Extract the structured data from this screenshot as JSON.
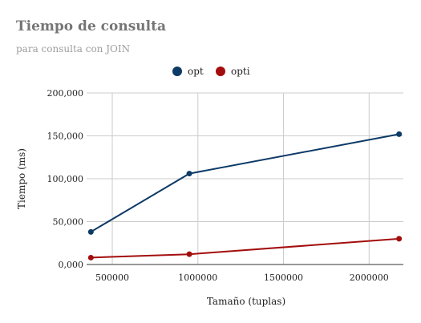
{
  "chart_data": {
    "type": "line",
    "title": "Tiempo de consulta",
    "subtitle": "para consulta con JOIN",
    "xlabel": "Tamaño (tuplas)",
    "ylabel": "Tiempo (ms)",
    "xlim": [
      350000,
      2200000
    ],
    "ylim": [
      0,
      200000
    ],
    "x_ticks": [
      500000,
      1000000,
      1500000,
      2000000
    ],
    "x_tick_labels": [
      "500000",
      "1000000",
      "1500000",
      "2000000"
    ],
    "y_ticks": [
      0,
      50000,
      100000,
      150000,
      200000
    ],
    "y_tick_labels": [
      "0,000",
      "50,000",
      "100,000",
      "150,000",
      "200,000"
    ],
    "grid": true,
    "legend_position": "top-center",
    "series": [
      {
        "name": "opt",
        "color": "#0d3a66",
        "x": [
          375000,
          950000,
          2175000
        ],
        "y": [
          38000,
          106000,
          152000
        ]
      },
      {
        "name": "opti",
        "color": "#a30d0d",
        "x": [
          375000,
          950000,
          2175000
        ],
        "y": [
          8000,
          12000,
          30000
        ]
      }
    ]
  }
}
